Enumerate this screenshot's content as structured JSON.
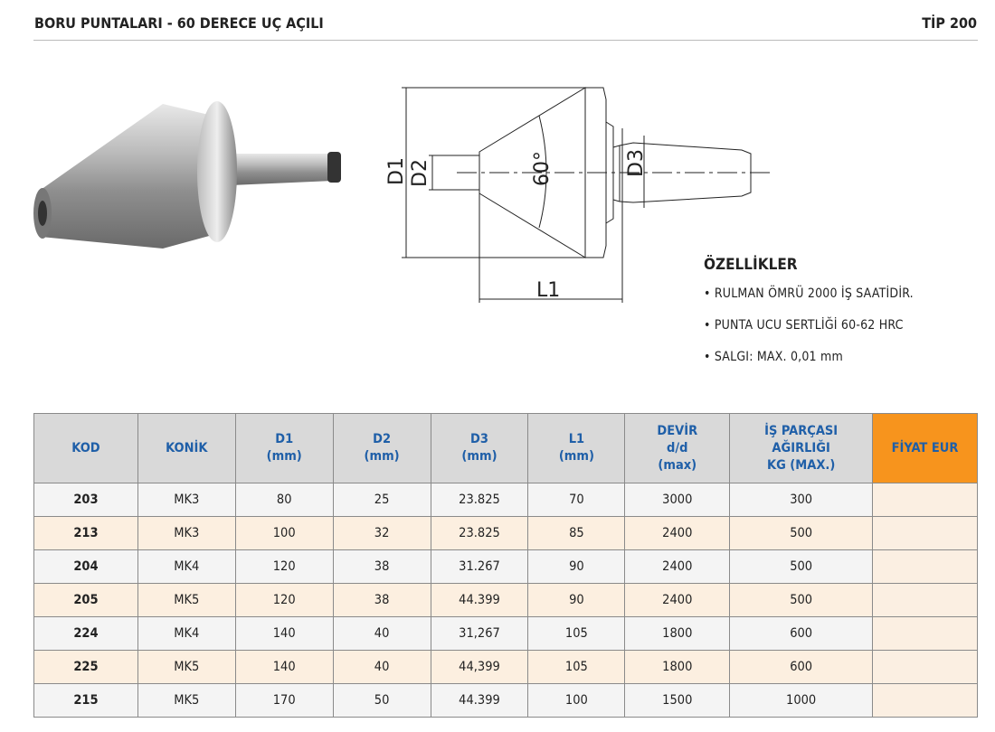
{
  "header": {
    "title": "BORU PUNTALARI - 60 DERECE UÇ AÇILI",
    "type": "TİP 200"
  },
  "drawing": {
    "d1": "D1",
    "d2": "D2",
    "d3": "D3",
    "l1": "L1",
    "angle": "60°"
  },
  "features": {
    "title": "ÖZELLİKLER",
    "items": [
      "• RULMAN ÖMRÜ 2000 İŞ SAATİDİR.",
      "• PUNTA UCU SERTLİĞİ 60-62 HRC",
      "• SALGI: MAX. 0,01 mm"
    ]
  },
  "table": {
    "headers": [
      [
        "KOD"
      ],
      [
        "KONİK"
      ],
      [
        "D1",
        "(mm)"
      ],
      [
        "D2",
        "(mm)"
      ],
      [
        "D3",
        "(mm)"
      ],
      [
        "L1",
        "(mm)"
      ],
      [
        "DEVİR",
        "d/d",
        "(max)"
      ],
      [
        "İŞ PARÇASI",
        "AĞIRLIĞI",
        "KG (MAX.)"
      ],
      [
        "FİYAT EUR"
      ]
    ],
    "rows": [
      [
        "203",
        "MK3",
        "80",
        "25",
        "23.825",
        "70",
        "3000",
        "300",
        ""
      ],
      [
        "213",
        "MK3",
        "100",
        "32",
        "23.825",
        "85",
        "2400",
        "500",
        ""
      ],
      [
        "204",
        "MK4",
        "120",
        "38",
        "31.267",
        "90",
        "2400",
        "500",
        ""
      ],
      [
        "205",
        "MK5",
        "120",
        "38",
        "44.399",
        "90",
        "2400",
        "500",
        ""
      ],
      [
        "224",
        "MK4",
        "140",
        "40",
        "31,267",
        "105",
        "1800",
        "600",
        ""
      ],
      [
        "225",
        "MK5",
        "140",
        "40",
        "44,399",
        "105",
        "1800",
        "600",
        ""
      ],
      [
        "215",
        "MK5",
        "170",
        "50",
        "44.399",
        "100",
        "1500",
        "1000",
        ""
      ]
    ]
  },
  "colors": {
    "header_text": "#1f5fa8",
    "price_header": "#f7941d",
    "row_alt": "#fcefe0"
  }
}
